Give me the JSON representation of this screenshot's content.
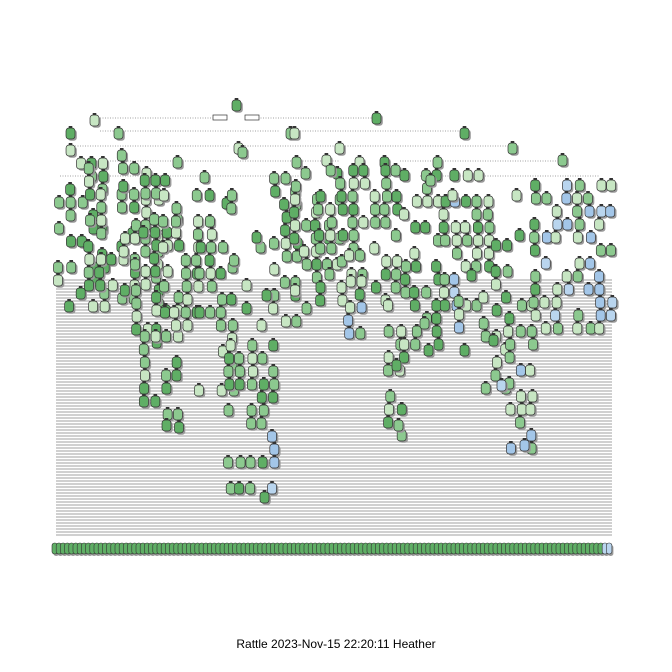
{
  "diagram": {
    "type": "decision-tree",
    "caption": "Rattle 2023-Nov-15 22:20:11 Heather",
    "colors": {
      "node_green_dark": "#5fae65",
      "node_green_mid": "#8cc98f",
      "node_green_light": "#c7e6c3",
      "node_blue_light": "#b9d5ee",
      "node_blue_mid": "#a3c6e8",
      "node_border": "#333333",
      "shadow": "#9a9a9a",
      "edge": "#444444",
      "background": "#ffffff"
    }
  }
}
